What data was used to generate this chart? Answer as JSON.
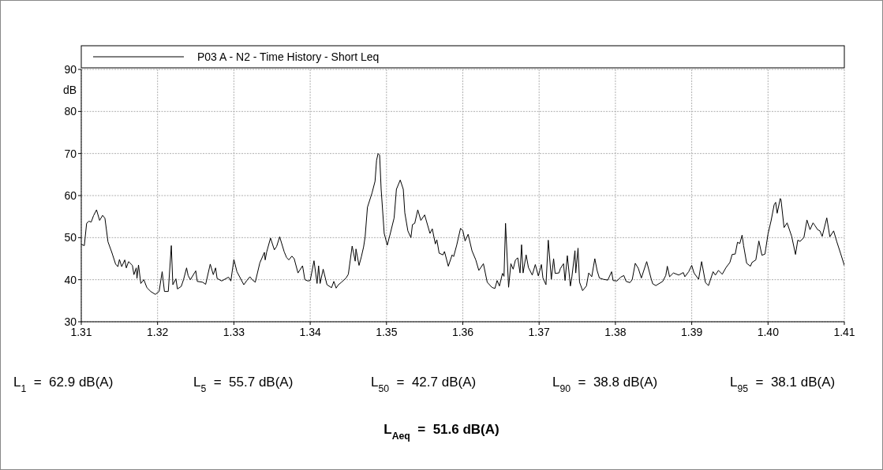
{
  "chart_data": {
    "type": "line",
    "ylabel": "dB",
    "xlim": [
      1.31,
      1.41
    ],
    "ylim": [
      30,
      90
    ],
    "xticks": [
      1.31,
      1.32,
      1.33,
      1.34,
      1.35,
      1.36,
      1.37,
      1.38,
      1.39,
      {
        "value": 1.4,
        "label": "1.40"
      },
      1.41
    ],
    "yticks": [
      30,
      40,
      50,
      60,
      70,
      80,
      90
    ],
    "grid": true,
    "legend": "top",
    "line_style": "solid",
    "marker": "none",
    "series": [
      {
        "name": "P03 A - N2 - Time History - Short Leq",
        "color": "#000000",
        "x": [
          1.31,
          1.3104,
          1.3107,
          1.311,
          1.3113,
          1.3116,
          1.312,
          1.3124,
          1.3128,
          1.3131,
          1.3135,
          1.314,
          1.3145,
          1.3148,
          1.315,
          1.3153,
          1.3157,
          1.3159,
          1.3162,
          1.3167,
          1.3169,
          1.3172,
          1.3173,
          1.3175,
          1.3178,
          1.3182,
          1.3186,
          1.3191,
          1.3197,
          1.3202,
          1.3206,
          1.3209,
          1.3214,
          1.3218,
          1.322,
          1.3224,
          1.3226,
          1.3231,
          1.3234,
          1.3238,
          1.324,
          1.3243,
          1.325,
          1.3252,
          1.3259,
          1.3263,
          1.3269,
          1.3273,
          1.3276,
          1.3278,
          1.3284,
          1.3293,
          1.3296,
          1.33,
          1.3304,
          1.3313,
          1.3317,
          1.3321,
          1.3324,
          1.3328,
          1.3334,
          1.334,
          1.3341,
          1.3343,
          1.3348,
          1.3353,
          1.3356,
          1.336,
          1.3366,
          1.3369,
          1.3372,
          1.3376,
          1.3379,
          1.3384,
          1.339,
          1.3393,
          1.3397,
          1.34,
          1.3405,
          1.3409,
          1.3411,
          1.3413,
          1.3417,
          1.3422,
          1.3428,
          1.3431,
          1.3434,
          1.3437,
          1.3441,
          1.3447,
          1.345,
          1.3455,
          1.3459,
          1.346,
          1.3464,
          1.3467,
          1.347,
          1.3472,
          1.3475,
          1.3481,
          1.3485,
          1.3487,
          1.3489,
          1.3491,
          1.3493,
          1.3497,
          1.3501,
          1.3505,
          1.351,
          1.3513,
          1.3518,
          1.3522,
          1.3524,
          1.3528,
          1.3532,
          1.3534,
          1.3537,
          1.3541,
          1.3545,
          1.355,
          1.3557,
          1.356,
          1.3564,
          1.3566,
          1.3569,
          1.3574,
          1.3576,
          1.3581,
          1.3586,
          1.3588,
          1.3592,
          1.3597,
          1.36,
          1.3603,
          1.3607,
          1.3612,
          1.3617,
          1.3621,
          1.3627,
          1.3632,
          1.3638,
          1.3642,
          1.3645,
          1.3648,
          1.3652,
          1.3654,
          1.3656,
          1.366,
          1.3663,
          1.3666,
          1.3669,
          1.3672,
          1.3675,
          1.3677,
          1.3679,
          1.3683,
          1.3686,
          1.3691,
          1.3695,
          1.3699,
          1.3703,
          1.3705,
          1.3709,
          1.3712,
          1.3716,
          1.3719,
          1.3721,
          1.3726,
          1.3728,
          1.3732,
          1.3734,
          1.3737,
          1.3741,
          1.3743,
          1.3747,
          1.3748,
          1.3751,
          1.3753,
          1.3757,
          1.3762,
          1.3765,
          1.3769,
          1.3773,
          1.3776,
          1.3779,
          1.3784,
          1.379,
          1.3795,
          1.3797,
          1.3802,
          1.3807,
          1.3811,
          1.3814,
          1.3819,
          1.3822,
          1.3826,
          1.383,
          1.3834,
          1.3841,
          1.3847,
          1.3849,
          1.3853,
          1.3862,
          1.3866,
          1.3868,
          1.3871,
          1.3876,
          1.3883,
          1.3889,
          1.3891,
          1.3896,
          1.39,
          1.3903,
          1.3909,
          1.3913,
          1.3918,
          1.3922,
          1.3928,
          1.3931,
          1.3935,
          1.394,
          1.3945,
          1.395,
          1.3953,
          1.3957,
          1.396,
          1.3963,
          1.3966,
          1.3968,
          1.3972,
          1.3977,
          1.3979,
          1.3984,
          1.3988,
          1.3992,
          1.3996,
          1.3997,
          1.4,
          1.4004,
          1.4008,
          1.401,
          1.4012,
          1.4016,
          1.4017,
          1.4021,
          1.4025,
          1.4031,
          1.4036,
          1.4039,
          1.4042,
          1.4047,
          1.4051,
          1.4055,
          1.4059,
          1.4061,
          1.4065,
          1.4068,
          1.4071,
          1.4077,
          1.4081,
          1.4086,
          1.409,
          1.4095,
          1.41
        ],
        "values": [
          48.4,
          48.1,
          53.4,
          53.9,
          53.7,
          55.2,
          56.6,
          54.1,
          55.3,
          54.6,
          49.0,
          46.5,
          43.7,
          43.1,
          44.8,
          43.1,
          44.7,
          42.8,
          44.3,
          43.4,
          41.2,
          42.8,
          40.3,
          43.5,
          39.1,
          40.0,
          38.1,
          37.2,
          36.5,
          37.2,
          41.9,
          37.2,
          37.2,
          48.1,
          38.8,
          40.2,
          37.8,
          38.4,
          40.0,
          42.8,
          41.0,
          40.0,
          42.1,
          39.6,
          39.4,
          38.9,
          43.7,
          41.2,
          42.8,
          40.3,
          39.7,
          40.6,
          39.7,
          44.8,
          41.9,
          38.8,
          39.8,
          40.7,
          40.0,
          39.4,
          44.0,
          46.5,
          44.7,
          46.6,
          49.9,
          47.1,
          47.9,
          50.2,
          46.6,
          45.3,
          44.7,
          45.6,
          45.0,
          41.6,
          43.3,
          40.0,
          39.7,
          39.8,
          44.5,
          39.1,
          43.3,
          39.1,
          42.5,
          38.8,
          38.1,
          39.6,
          38.0,
          38.8,
          39.4,
          40.4,
          41.3,
          48.0,
          44.4,
          47.3,
          43.4,
          45.4,
          47.8,
          50.2,
          57.2,
          60.6,
          63.4,
          68.4,
          70.0,
          69.6,
          61.5,
          51.0,
          48.2,
          51.0,
          54.7,
          61.5,
          63.7,
          61.5,
          55.9,
          51.6,
          50.0,
          53.1,
          53.4,
          56.6,
          54.1,
          55.4,
          51.0,
          52.1,
          48.5,
          49.5,
          46.3,
          45.9,
          46.7,
          43.2,
          45.9,
          45.5,
          48.2,
          52.2,
          51.7,
          49.2,
          50.8,
          46.9,
          44.7,
          42.2,
          43.8,
          39.4,
          38.2,
          37.9,
          39.8,
          38.5,
          41.5,
          40.8,
          53.4,
          38.2,
          43.8,
          42.5,
          44.7,
          45.2,
          41.6,
          48.3,
          41.6,
          45.9,
          42.9,
          41.1,
          43.6,
          40.9,
          43.6,
          40.4,
          38.8,
          49.4,
          40.1,
          45.0,
          41.5,
          41.6,
          42.7,
          43.8,
          39.8,
          45.7,
          38.5,
          40.7,
          46.9,
          41.6,
          47.5,
          39.4,
          37.4,
          38.5,
          41.6,
          40.7,
          45.0,
          42.2,
          40.4,
          40.1,
          39.9,
          41.9,
          39.8,
          39.7,
          40.6,
          41.0,
          39.6,
          39.3,
          40.0,
          43.9,
          42.7,
          40.4,
          44.3,
          40.1,
          39.0,
          38.6,
          39.6,
          41.0,
          43.2,
          40.7,
          41.6,
          41.1,
          41.7,
          40.7,
          41.9,
          43.4,
          41.6,
          40.1,
          44.3,
          39.3,
          38.6,
          41.9,
          41.1,
          42.2,
          41.3,
          42.9,
          44.1,
          46.0,
          46.1,
          48.9,
          48.6,
          50.6,
          48.1,
          43.9,
          43.2,
          44.1,
          44.7,
          49.2,
          45.8,
          46.1,
          47.3,
          50.9,
          54.0,
          57.8,
          58.4,
          55.8,
          59.3,
          59.0,
          52.4,
          53.5,
          50.3,
          46.0,
          49.4,
          49.1,
          50.0,
          54.2,
          51.9,
          53.5,
          53.0,
          51.9,
          51.6,
          50.3,
          54.7,
          50.2,
          51.6,
          49.1,
          46.3,
          43.4
        ]
      }
    ],
    "annotations": [
      "L$_{1}$  =  62.9 dB(A)",
      "L$_{5}$  =  55.7 dB(A)",
      "L$_{50}$  =  42.7 dB(A)",
      "L$_{90}$  =  38.8 dB(A)",
      "L$_{95}$  =  38.1 dB(A)",
      "L$_{Aeq}$  =  51.6 dB(A)"
    ]
  }
}
